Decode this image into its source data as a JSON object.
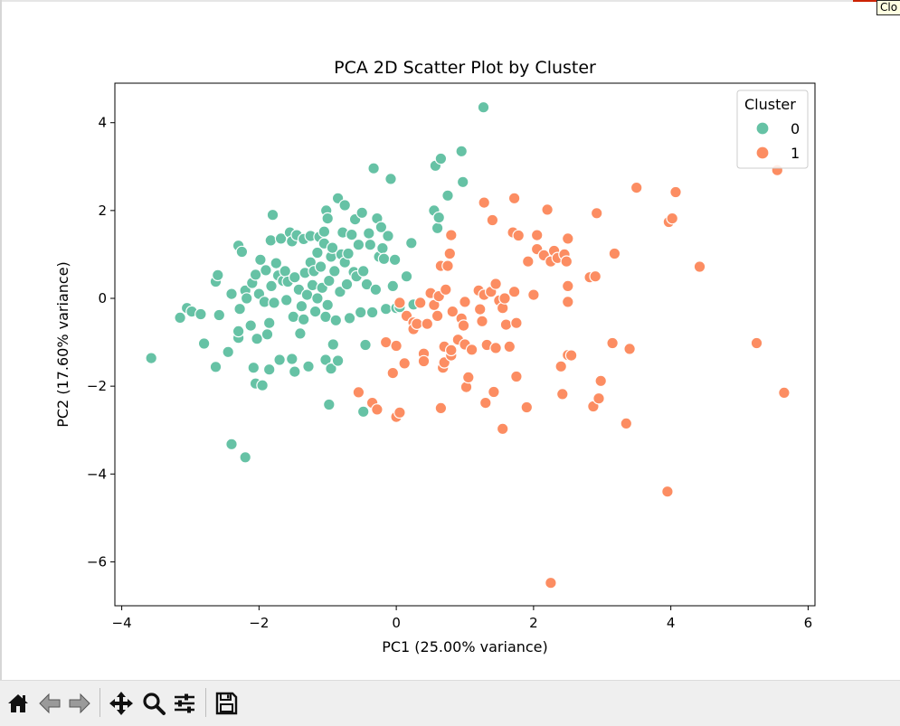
{
  "window": {
    "tooltip_text": "Clo"
  },
  "chart_data": {
    "type": "scatter",
    "title": "PCA 2D Scatter Plot by Cluster",
    "xlabel": "PC1 (25.00% variance)",
    "ylabel": "PC2 (17.60% variance)",
    "xlim": [
      -4.1,
      6.1
    ],
    "ylim": [
      -7.0,
      4.9
    ],
    "xticks": [
      -4,
      -2,
      0,
      2,
      4,
      6
    ],
    "yticks": [
      -6,
      -4,
      -2,
      0,
      2,
      4
    ],
    "xtick_labels": [
      "−4",
      "−2",
      "0",
      "2",
      "4",
      "6"
    ],
    "ytick_labels": [
      "−6",
      "−4",
      "−2",
      "0",
      "2",
      "4"
    ],
    "grid": false,
    "legend": {
      "title": "Cluster",
      "placement": "top-right"
    },
    "series": [
      {
        "name": "0",
        "color": "#66c2a5",
        "points": [
          [
            -3.57,
            -1.36
          ],
          [
            -3.15,
            -0.44
          ],
          [
            -3.05,
            -0.22
          ],
          [
            -2.98,
            -0.3
          ],
          [
            -2.85,
            -0.36
          ],
          [
            -2.8,
            -1.03
          ],
          [
            -2.63,
            -1.56
          ],
          [
            -2.63,
            0.38
          ],
          [
            -2.6,
            0.53
          ],
          [
            -2.58,
            -0.38
          ],
          [
            -2.45,
            -1.22
          ],
          [
            -2.4,
            -3.32
          ],
          [
            -2.4,
            0.1
          ],
          [
            -2.3,
            -0.9
          ],
          [
            -2.3,
            -0.75
          ],
          [
            -2.3,
            1.2
          ],
          [
            -2.28,
            -0.24
          ],
          [
            -2.25,
            1.06
          ],
          [
            -2.2,
            -3.62
          ],
          [
            -2.2,
            0.18
          ],
          [
            -2.18,
            0.0
          ],
          [
            -2.12,
            -0.62
          ],
          [
            -2.1,
            0.35
          ],
          [
            -2.08,
            -1.58
          ],
          [
            -2.05,
            -1.94
          ],
          [
            -2.05,
            0.54
          ],
          [
            -2.03,
            -0.92
          ],
          [
            -2.0,
            0.1
          ],
          [
            -1.98,
            0.88
          ],
          [
            -1.95,
            -1.98
          ],
          [
            -1.92,
            -0.08
          ],
          [
            -1.9,
            0.64
          ],
          [
            -1.88,
            -0.82
          ],
          [
            -1.85,
            -1.62
          ],
          [
            -1.85,
            -0.56
          ],
          [
            -1.83,
            1.32
          ],
          [
            -1.82,
            0.28
          ],
          [
            -1.8,
            1.9
          ],
          [
            -1.78,
            -0.1
          ],
          [
            -1.75,
            0.8
          ],
          [
            -1.72,
            0.52
          ],
          [
            -1.7,
            -1.4
          ],
          [
            -1.68,
            1.36
          ],
          [
            -1.65,
            0.4
          ],
          [
            -1.62,
            0.62
          ],
          [
            -1.6,
            -0.04
          ],
          [
            -1.58,
            0.38
          ],
          [
            -1.55,
            1.5
          ],
          [
            -1.52,
            1.3
          ],
          [
            -1.52,
            -1.38
          ],
          [
            -1.5,
            -0.42
          ],
          [
            -1.48,
            -1.67
          ],
          [
            -1.48,
            0.48
          ],
          [
            -1.45,
            1.44
          ],
          [
            -1.42,
            0.2
          ],
          [
            -1.4,
            -0.8
          ],
          [
            -1.38,
            -0.18
          ],
          [
            -1.35,
            1.35
          ],
          [
            -1.35,
            -0.48
          ],
          [
            -1.33,
            0.58
          ],
          [
            -1.3,
            0.08
          ],
          [
            -1.28,
            -1.55
          ],
          [
            -1.25,
            1.42
          ],
          [
            -1.25,
            0.82
          ],
          [
            -1.22,
            0.3
          ],
          [
            -1.2,
            0.62
          ],
          [
            -1.18,
            -0.3
          ],
          [
            -1.15,
            0.0
          ],
          [
            -1.15,
            1.04
          ],
          [
            -1.12,
            1.4
          ],
          [
            -1.1,
            0.72
          ],
          [
            -1.08,
            0.24
          ],
          [
            -1.05,
            1.25
          ],
          [
            -1.05,
            1.52
          ],
          [
            -1.03,
            -0.42
          ],
          [
            -1.03,
            -1.4
          ],
          [
            -1.02,
            2.0
          ],
          [
            -1.0,
            1.82
          ],
          [
            -1.0,
            -0.15
          ],
          [
            -0.98,
            -2.42
          ],
          [
            -0.98,
            0.4
          ],
          [
            -0.95,
            0.95
          ],
          [
            -0.95,
            -1.6
          ],
          [
            -0.93,
            1.15
          ],
          [
            -0.92,
            -1.05
          ],
          [
            -0.9,
            0.62
          ],
          [
            -0.88,
            -0.5
          ],
          [
            -0.85,
            -1.42
          ],
          [
            -0.85,
            2.28
          ],
          [
            -0.82,
            0.15
          ],
          [
            -0.8,
            1.0
          ],
          [
            -0.78,
            1.5
          ],
          [
            -0.75,
            0.82
          ],
          [
            -0.75,
            2.12
          ],
          [
            -0.72,
            0.32
          ],
          [
            -0.7,
            1.02
          ],
          [
            -0.68,
            -0.45
          ],
          [
            -0.65,
            1.45
          ],
          [
            -0.62,
            0.6
          ],
          [
            -0.6,
            1.8
          ],
          [
            -0.58,
            0.5
          ],
          [
            -0.55,
            1.22
          ],
          [
            -0.52,
            -0.32
          ],
          [
            -0.5,
            1.95
          ],
          [
            -0.48,
            -2.58
          ],
          [
            -0.48,
            0.62
          ],
          [
            -0.45,
            -1.06
          ],
          [
            -0.43,
            0.32
          ],
          [
            -0.4,
            1.48
          ],
          [
            -0.38,
            1.22
          ],
          [
            -0.35,
            -0.32
          ],
          [
            -0.33,
            2.96
          ],
          [
            -0.3,
            0.2
          ],
          [
            -0.28,
            1.82
          ],
          [
            -0.25,
            0.95
          ],
          [
            -0.22,
            1.62
          ],
          [
            -0.2,
            1.14
          ],
          [
            -0.18,
            0.9
          ],
          [
            -0.15,
            -0.24
          ],
          [
            -0.12,
            1.42
          ],
          [
            -0.08,
            2.72
          ],
          [
            -0.05,
            0.28
          ],
          [
            -0.02,
            0.88
          ],
          [
            0.0,
            -0.22
          ],
          [
            0.05,
            -0.2
          ],
          [
            0.15,
            0.5
          ],
          [
            0.22,
            1.26
          ],
          [
            0.25,
            -0.14
          ],
          [
            0.55,
            2.0
          ],
          [
            0.57,
            3.02
          ],
          [
            0.6,
            1.6
          ],
          [
            0.62,
            1.84
          ],
          [
            0.65,
            3.18
          ],
          [
            0.75,
            2.34
          ],
          [
            0.95,
            3.35
          ],
          [
            0.97,
            2.65
          ],
          [
            1.27,
            4.35
          ]
        ]
      },
      {
        "name": "1",
        "color": "#fc8d62",
        "points": [
          [
            -0.55,
            -2.14
          ],
          [
            -0.35,
            -2.38
          ],
          [
            -0.28,
            -2.53
          ],
          [
            -0.15,
            -1.0
          ],
          [
            -0.05,
            -1.7
          ],
          [
            0.0,
            -2.7
          ],
          [
            0.0,
            -1.08
          ],
          [
            0.05,
            -2.6
          ],
          [
            0.05,
            -0.1
          ],
          [
            0.12,
            -1.48
          ],
          [
            0.15,
            -0.4
          ],
          [
            0.25,
            -0.55
          ],
          [
            0.25,
            -0.7
          ],
          [
            0.3,
            -0.58
          ],
          [
            0.35,
            -0.1
          ],
          [
            0.4,
            -1.26
          ],
          [
            0.4,
            -1.43
          ],
          [
            0.45,
            -0.58
          ],
          [
            0.5,
            0.12
          ],
          [
            0.55,
            -0.15
          ],
          [
            0.6,
            -0.4
          ],
          [
            0.62,
            0.05
          ],
          [
            0.65,
            0.74
          ],
          [
            0.65,
            -2.5
          ],
          [
            0.68,
            -1.58
          ],
          [
            0.7,
            -1.46
          ],
          [
            0.7,
            -1.1
          ],
          [
            0.72,
            0.2
          ],
          [
            0.75,
            0.74
          ],
          [
            0.78,
            1.02
          ],
          [
            0.8,
            -1.3
          ],
          [
            0.8,
            -1.18
          ],
          [
            0.8,
            1.44
          ],
          [
            0.82,
            -0.3
          ],
          [
            0.9,
            -0.94
          ],
          [
            0.95,
            -0.46
          ],
          [
            0.98,
            -0.62
          ],
          [
            1.0,
            -0.08
          ],
          [
            1.0,
            -1.05
          ],
          [
            1.02,
            -2.02
          ],
          [
            1.05,
            -1.8
          ],
          [
            1.1,
            -1.17
          ],
          [
            1.2,
            0.18
          ],
          [
            1.22,
            -0.25
          ],
          [
            1.25,
            -0.52
          ],
          [
            1.28,
            0.08
          ],
          [
            1.28,
            2.18
          ],
          [
            1.3,
            -2.38
          ],
          [
            1.32,
            -1.06
          ],
          [
            1.38,
            0.15
          ],
          [
            1.4,
            1.78
          ],
          [
            1.42,
            -2.13
          ],
          [
            1.45,
            0.33
          ],
          [
            1.45,
            -1.13
          ],
          [
            1.5,
            -0.05
          ],
          [
            1.55,
            -2.97
          ],
          [
            1.55,
            -0.22
          ],
          [
            1.58,
            0.0
          ],
          [
            1.6,
            -0.6
          ],
          [
            1.65,
            -1.1
          ],
          [
            1.7,
            1.5
          ],
          [
            1.72,
            2.28
          ],
          [
            1.72,
            0.15
          ],
          [
            1.75,
            -0.56
          ],
          [
            1.75,
            -1.78
          ],
          [
            1.78,
            1.43
          ],
          [
            1.9,
            -2.48
          ],
          [
            1.92,
            0.84
          ],
          [
            2.0,
            0.08
          ],
          [
            2.05,
            1.44
          ],
          [
            2.05,
            1.12
          ],
          [
            2.15,
            0.98
          ],
          [
            2.2,
            2.02
          ],
          [
            2.25,
            -6.48
          ],
          [
            2.25,
            0.84
          ],
          [
            2.3,
            1.08
          ],
          [
            2.35,
            0.92
          ],
          [
            2.4,
            -1.55
          ],
          [
            2.42,
            -2.18
          ],
          [
            2.45,
            1.0
          ],
          [
            2.48,
            0.84
          ],
          [
            2.5,
            1.36
          ],
          [
            2.5,
            0.28
          ],
          [
            2.5,
            -0.08
          ],
          [
            2.5,
            -1.29
          ],
          [
            2.55,
            -1.3
          ],
          [
            2.82,
            0.48
          ],
          [
            2.87,
            -2.46
          ],
          [
            2.9,
            0.5
          ],
          [
            2.92,
            1.94
          ],
          [
            2.95,
            -2.28
          ],
          [
            2.98,
            -1.88
          ],
          [
            3.15,
            -1.02
          ],
          [
            3.18,
            1.02
          ],
          [
            3.35,
            -2.85
          ],
          [
            3.4,
            -1.15
          ],
          [
            3.5,
            2.52
          ],
          [
            3.95,
            -4.4
          ],
          [
            3.97,
            1.74
          ],
          [
            4.02,
            1.82
          ],
          [
            4.07,
            2.42
          ],
          [
            4.42,
            0.72
          ],
          [
            5.25,
            -1.02
          ],
          [
            5.55,
            2.92
          ],
          [
            5.65,
            -2.15
          ]
        ]
      }
    ]
  },
  "toolbar": {
    "buttons": [
      {
        "name": "home-button",
        "icon": "home-icon"
      },
      {
        "name": "back-button",
        "icon": "arrow-left-icon"
      },
      {
        "name": "forward-button",
        "icon": "arrow-right-icon"
      },
      {
        "name": "pan-button",
        "icon": "move-icon"
      },
      {
        "name": "zoom-button",
        "icon": "magnifier-icon"
      },
      {
        "name": "configure-subplots-button",
        "icon": "sliders-icon"
      },
      {
        "name": "save-button",
        "icon": "floppy-disk-icon"
      }
    ]
  }
}
